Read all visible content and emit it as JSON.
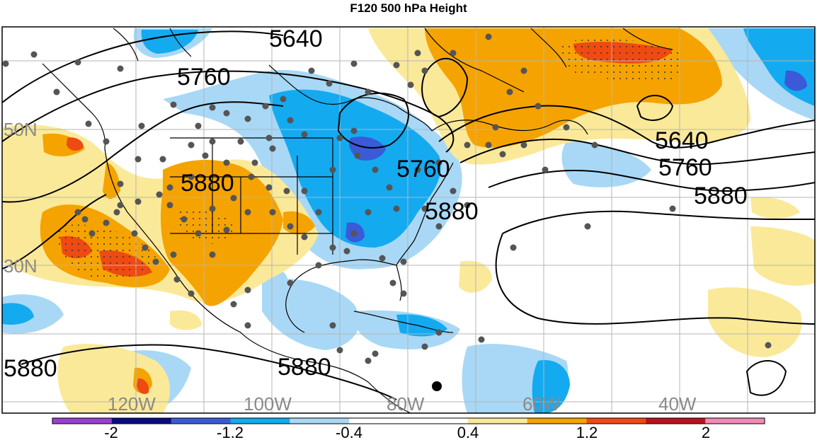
{
  "title": "F120 500 hPa Height",
  "lat_labels": [
    "50N",
    "30N"
  ],
  "lon_labels": [
    "120W",
    "100W",
    "80W",
    "60W",
    "40W"
  ],
  "contour_labels": [
    "5640",
    "5760",
    "5880"
  ],
  "colorbar": {
    "tick_labels": [
      "-2",
      "-1.2",
      "-0.4",
      "0.4",
      "1.2",
      "2"
    ],
    "colors": [
      "#9a3fd0",
      "#0b0b80",
      "#3a5ad8",
      "#14aaf0",
      "#a8d8f5",
      "#ffffff",
      "#fbe99a",
      "#f5a300",
      "#ee4a12",
      "#b8141c",
      "#f28ab8"
    ]
  },
  "colors": {
    "anomaly_neg_strong": "#3a5ad8",
    "anomaly_neg_mid": "#14aaf0",
    "anomaly_neg_weak": "#a8d8f5",
    "anomaly_pos_weak": "#fbe99a",
    "anomaly_pos_mid": "#f5a300",
    "anomaly_pos_strong": "#ee4a12",
    "station_dot": "#555555"
  }
}
